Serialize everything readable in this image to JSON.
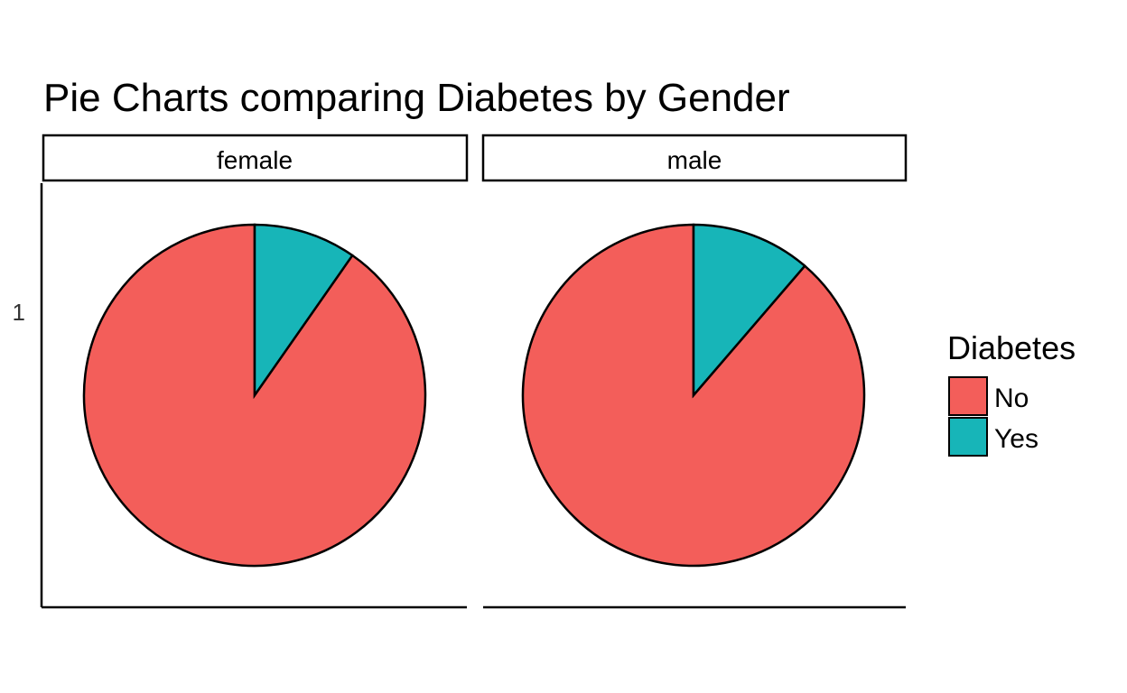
{
  "chart_data": {
    "type": "pie",
    "title": "Pie Charts comparing Diabetes by Gender",
    "facet_row_label": "1",
    "categories": [
      "No",
      "Yes"
    ],
    "colors": {
      "No": "#F35E5A",
      "Yes": "#17B5B8"
    },
    "facets": [
      {
        "label": "female",
        "values": {
          "No": 0.903,
          "Yes": 0.097
        }
      },
      {
        "label": "male",
        "values": {
          "No": 0.887,
          "Yes": 0.113
        }
      }
    ],
    "legend": {
      "title": "Diabetes",
      "position": "right"
    }
  }
}
